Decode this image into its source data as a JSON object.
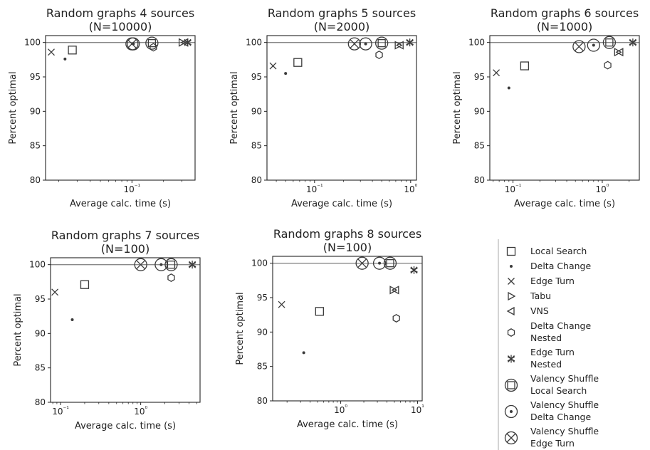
{
  "colors": {
    "marker": "#3a3a3a",
    "frame": "#222222",
    "reference_line": "#888888",
    "background": "#ffffff"
  },
  "y_axis_label": "Percent optimal",
  "x_axis_label": "Average calc. time (s)",
  "legend": [
    {
      "key": "ls",
      "label": [
        "Local Search"
      ],
      "icon": "square-marker-icon"
    },
    {
      "key": "dc",
      "label": [
        "Delta Change"
      ],
      "icon": "dot-marker-icon"
    },
    {
      "key": "et",
      "label": [
        "Edge Turn"
      ],
      "icon": "x-marker-icon"
    },
    {
      "key": "tabu",
      "label": [
        "Tabu"
      ],
      "icon": "triangle-right-marker-icon"
    },
    {
      "key": "vns",
      "label": [
        "VNS"
      ],
      "icon": "triangle-left-marker-icon"
    },
    {
      "key": "dcn",
      "label": [
        "Delta Change",
        "Nested"
      ],
      "icon": "hexagon-marker-icon"
    },
    {
      "key": "etn",
      "label": [
        "Edge Turn",
        "Nested"
      ],
      "icon": "star-marker-icon"
    },
    {
      "key": "vsls",
      "label": [
        "Valency Shuffle",
        "Local Search"
      ],
      "icon": "circled-square-marker-icon"
    },
    {
      "key": "vsdc",
      "label": [
        "Valency Shuffle",
        "Delta Change"
      ],
      "icon": "circled-dot-marker-icon"
    },
    {
      "key": "vset",
      "label": [
        "Valency Shuffle",
        "Edge Turn"
      ],
      "icon": "circled-x-marker-icon"
    }
  ],
  "chart_data": [
    {
      "type": "scatter",
      "title": [
        "Random graphs 4 sources",
        "(N=10000)"
      ],
      "xlabel": "Average calc. time (s)",
      "ylabel": "Percent optimal",
      "xscale": "log",
      "xlim": [
        0.015,
        0.4
      ],
      "ylim": [
        80,
        101
      ],
      "yticks": [
        80,
        85,
        90,
        95,
        100
      ],
      "xticks": [
        {
          "value": 0.1,
          "label": "10⁻¹"
        }
      ],
      "reference_line": 100,
      "grid": false,
      "points": [
        {
          "series": "ls",
          "x": 0.027,
          "y": 98.9
        },
        {
          "series": "dc",
          "x": 0.023,
          "y": 97.6
        },
        {
          "series": "et",
          "x": 0.017,
          "y": 98.6
        },
        {
          "series": "tabu",
          "x": 0.3,
          "y": 100.0
        },
        {
          "series": "vns",
          "x": 0.32,
          "y": 100.0
        },
        {
          "series": "dcn",
          "x": 0.16,
          "y": 99.3
        },
        {
          "series": "etn",
          "x": 0.34,
          "y": 100.0
        },
        {
          "series": "vsls",
          "x": 0.155,
          "y": 99.9
        },
        {
          "series": "vsdc",
          "x": 0.103,
          "y": 99.8
        },
        {
          "series": "vset",
          "x": 0.1,
          "y": 99.8
        }
      ]
    },
    {
      "type": "scatter",
      "title": [
        "Random graphs 5 sources",
        "(N=2000)"
      ],
      "xlabel": "Average calc. time (s)",
      "ylabel": "Percent optimal",
      "xscale": "log",
      "xlim": [
        0.032,
        1.15
      ],
      "ylim": [
        80,
        101
      ],
      "yticks": [
        80,
        85,
        90,
        95,
        100
      ],
      "xticks": [
        {
          "value": 0.1,
          "label": "10⁻¹"
        },
        {
          "value": 1,
          "label": "10⁰"
        }
      ],
      "reference_line": 100,
      "grid": false,
      "points": [
        {
          "series": "ls",
          "x": 0.067,
          "y": 97.1
        },
        {
          "series": "dc",
          "x": 0.05,
          "y": 95.5
        },
        {
          "series": "et",
          "x": 0.037,
          "y": 96.6
        },
        {
          "series": "tabu",
          "x": 0.74,
          "y": 99.6
        },
        {
          "series": "vns",
          "x": 0.78,
          "y": 99.6
        },
        {
          "series": "dcn",
          "x": 0.47,
          "y": 98.2
        },
        {
          "series": "etn",
          "x": 0.98,
          "y": 100.0
        },
        {
          "series": "vsls",
          "x": 0.5,
          "y": 99.9
        },
        {
          "series": "vsdc",
          "x": 0.34,
          "y": 99.8
        },
        {
          "series": "vset",
          "x": 0.26,
          "y": 99.8
        }
      ]
    },
    {
      "type": "scatter",
      "title": [
        "Random graphs 6 sources",
        "(N=1000)"
      ],
      "xlabel": "Average calc. time (s)",
      "ylabel": "Percent optimal",
      "xscale": "log",
      "xlim": [
        0.055,
        2.6
      ],
      "ylim": [
        80,
        101
      ],
      "yticks": [
        80,
        85,
        90,
        95,
        100
      ],
      "xticks": [
        {
          "value": 0.1,
          "label": "10⁻¹"
        },
        {
          "value": 1,
          "label": "10⁰"
        }
      ],
      "reference_line": 100,
      "grid": false,
      "points": [
        {
          "series": "ls",
          "x": 0.135,
          "y": 96.6
        },
        {
          "series": "dc",
          "x": 0.09,
          "y": 93.4
        },
        {
          "series": "et",
          "x": 0.065,
          "y": 95.6
        },
        {
          "series": "tabu",
          "x": 1.48,
          "y": 98.6
        },
        {
          "series": "vns",
          "x": 1.58,
          "y": 98.6
        },
        {
          "series": "dcn",
          "x": 1.15,
          "y": 96.7
        },
        {
          "series": "etn",
          "x": 2.2,
          "y": 100.0
        },
        {
          "series": "vsls",
          "x": 1.2,
          "y": 100.0
        },
        {
          "series": "vsdc",
          "x": 0.8,
          "y": 99.6
        },
        {
          "series": "vset",
          "x": 0.55,
          "y": 99.4
        }
      ]
    },
    {
      "type": "scatter",
      "title": [
        "Random graphs 7 sources",
        "(N=100)"
      ],
      "xlabel": "Average calc. time (s)",
      "ylabel": "Percent optimal",
      "xscale": "log",
      "xlim": [
        0.075,
        5.5
      ],
      "ylim": [
        80,
        101
      ],
      "yticks": [
        80,
        85,
        90,
        95,
        100
      ],
      "xticks": [
        {
          "value": 0.1,
          "label": "10⁻¹"
        },
        {
          "value": 1,
          "label": "10⁰"
        }
      ],
      "reference_line": 100,
      "grid": false,
      "points": [
        {
          "series": "ls",
          "x": 0.2,
          "y": 97.1
        },
        {
          "series": "dc",
          "x": 0.14,
          "y": 92.0
        },
        {
          "series": "et",
          "x": 0.085,
          "y": 96.0
        },
        {
          "series": "dcn",
          "x": 2.4,
          "y": 98.1
        },
        {
          "series": "etn",
          "x": 4.4,
          "y": 100.0
        },
        {
          "series": "vsls",
          "x": 2.4,
          "y": 100.0
        },
        {
          "series": "vsdc",
          "x": 1.8,
          "y": 100.0
        },
        {
          "series": "vset",
          "x": 1.0,
          "y": 100.0
        }
      ]
    },
    {
      "type": "scatter",
      "title": [
        "Random graphs 8 sources",
        "(N=100)"
      ],
      "xlabel": "Average calc. time (s)",
      "ylabel": "Percent optimal",
      "xscale": "log",
      "xlim": [
        0.13,
        11.5
      ],
      "ylim": [
        80,
        101
      ],
      "yticks": [
        80,
        85,
        90,
        95,
        100
      ],
      "xticks": [
        {
          "value": 1,
          "label": "10⁰"
        },
        {
          "value": 10,
          "label": "10¹"
        }
      ],
      "reference_line": 100,
      "grid": false,
      "points": [
        {
          "series": "ls",
          "x": 0.53,
          "y": 93.0
        },
        {
          "series": "dc",
          "x": 0.33,
          "y": 87.0
        },
        {
          "series": "et",
          "x": 0.17,
          "y": 94.0
        },
        {
          "series": "tabu",
          "x": 4.8,
          "y": 96.1
        },
        {
          "series": "vns",
          "x": 5.2,
          "y": 96.1
        },
        {
          "series": "dcn",
          "x": 5.3,
          "y": 92.0
        },
        {
          "series": "etn",
          "x": 9.0,
          "y": 99.0
        },
        {
          "series": "vsls",
          "x": 4.4,
          "y": 100.0
        },
        {
          "series": "vsdc",
          "x": 3.2,
          "y": 100.0
        },
        {
          "series": "vset",
          "x": 1.9,
          "y": 100.0
        }
      ]
    }
  ]
}
